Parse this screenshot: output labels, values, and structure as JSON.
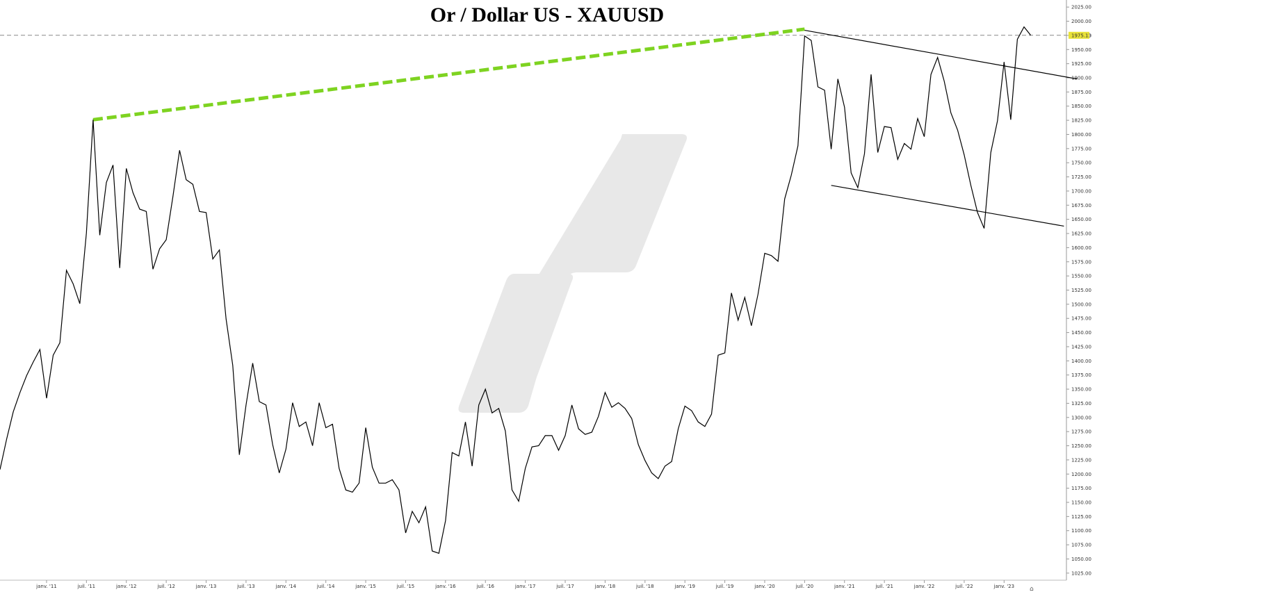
{
  "chart_data": {
    "type": "line",
    "title": "Or / Dollar US - XAUUSD",
    "xlabel": "",
    "ylabel": "",
    "ylim": [
      1012.5,
      2037.5
    ],
    "x_range": [
      "2010-06",
      "2023-08"
    ],
    "y_ticks": [
      "2025.00",
      "2000.00",
      "1975.00",
      "1950.00",
      "1925.00",
      "1900.00",
      "1875.00",
      "1850.00",
      "1825.00",
      "1800.00",
      "1775.00",
      "1750.00",
      "1725.00",
      "1700.00",
      "1675.00",
      "1650.00",
      "1625.00",
      "1600.00",
      "1575.00",
      "1550.00",
      "1525.00",
      "1500.00",
      "1475.00",
      "1450.00",
      "1425.00",
      "1400.00",
      "1375.00",
      "1350.00",
      "1325.00",
      "1300.00",
      "1275.00",
      "1250.00",
      "1225.00",
      "1200.00",
      "1175.00",
      "1150.00",
      "1125.00",
      "1100.00",
      "1075.00",
      "1050.00",
      "1025.00"
    ],
    "x_ticks": [
      {
        "label": "janv. '11",
        "date": "2011-01"
      },
      {
        "label": "juil. '11",
        "date": "2011-07"
      },
      {
        "label": "janv. '12",
        "date": "2012-01"
      },
      {
        "label": "juil. '12",
        "date": "2012-07"
      },
      {
        "label": "janv. '13",
        "date": "2013-01"
      },
      {
        "label": "juil. '13",
        "date": "2013-07"
      },
      {
        "label": "janv. '14",
        "date": "2014-01"
      },
      {
        "label": "juil. '14",
        "date": "2014-07"
      },
      {
        "label": "janv. '15",
        "date": "2015-01"
      },
      {
        "label": "juil. '15",
        "date": "2015-07"
      },
      {
        "label": "janv. '16",
        "date": "2016-01"
      },
      {
        "label": "juil. '16",
        "date": "2016-07"
      },
      {
        "label": "janv. '17",
        "date": "2017-01"
      },
      {
        "label": "juil. '17",
        "date": "2017-07"
      },
      {
        "label": "janv. '18",
        "date": "2018-01"
      },
      {
        "label": "juil. '18",
        "date": "2018-07"
      },
      {
        "label": "janv. '19",
        "date": "2019-01"
      },
      {
        "label": "juil. '19",
        "date": "2019-07"
      },
      {
        "label": "janv. '20",
        "date": "2020-01"
      },
      {
        "label": "juil. '20",
        "date": "2020-07"
      },
      {
        "label": "janv. '21",
        "date": "2021-01"
      },
      {
        "label": "juil. '21",
        "date": "2021-07"
      },
      {
        "label": "janv. '22",
        "date": "2022-01"
      },
      {
        "label": "juil. '22",
        "date": "2022-07"
      },
      {
        "label": "janv. '23",
        "date": "2023-01"
      }
    ],
    "series": [
      {
        "color": "#000000",
        "points": [
          [
            "2010-06",
            1208
          ],
          [
            "2010-07",
            1262
          ],
          [
            "2010-08",
            1310
          ],
          [
            "2010-09",
            1344
          ],
          [
            "2010-10",
            1374
          ],
          [
            "2010-11",
            1398
          ],
          [
            "2010-12",
            1420
          ],
          [
            "2011-01",
            1334
          ],
          [
            "2011-02",
            1410
          ],
          [
            "2011-03",
            1432
          ],
          [
            "2011-04",
            1560
          ],
          [
            "2011-05",
            1536
          ],
          [
            "2011-06",
            1501
          ],
          [
            "2011-07",
            1626
          ],
          [
            "2011-08",
            1826
          ],
          [
            "2011-09",
            1622
          ],
          [
            "2011-10",
            1715
          ],
          [
            "2011-11",
            1746
          ],
          [
            "2011-12",
            1564
          ],
          [
            "2012-01",
            1740
          ],
          [
            "2012-02",
            1697
          ],
          [
            "2012-03",
            1668
          ],
          [
            "2012-04",
            1664
          ],
          [
            "2012-05",
            1562
          ],
          [
            "2012-06",
            1598
          ],
          [
            "2012-07",
            1614
          ],
          [
            "2012-08",
            1690
          ],
          [
            "2012-09",
            1772
          ],
          [
            "2012-10",
            1720
          ],
          [
            "2012-11",
            1712
          ],
          [
            "2012-12",
            1664
          ],
          [
            "2013-01",
            1662
          ],
          [
            "2013-02",
            1580
          ],
          [
            "2013-03",
            1596
          ],
          [
            "2013-04",
            1474
          ],
          [
            "2013-05",
            1392
          ],
          [
            "2013-06",
            1234
          ],
          [
            "2013-07",
            1322
          ],
          [
            "2013-08",
            1396
          ],
          [
            "2013-09",
            1328
          ],
          [
            "2013-10",
            1322
          ],
          [
            "2013-11",
            1252
          ],
          [
            "2013-12",
            1202
          ],
          [
            "2014-01",
            1244
          ],
          [
            "2014-02",
            1326
          ],
          [
            "2014-03",
            1284
          ],
          [
            "2014-04",
            1292
          ],
          [
            "2014-05",
            1250
          ],
          [
            "2014-06",
            1326
          ],
          [
            "2014-07",
            1282
          ],
          [
            "2014-08",
            1288
          ],
          [
            "2014-09",
            1210
          ],
          [
            "2014-10",
            1172
          ],
          [
            "2014-11",
            1168
          ],
          [
            "2014-12",
            1184
          ],
          [
            "2015-01",
            1282
          ],
          [
            "2015-02",
            1212
          ],
          [
            "2015-03",
            1184
          ],
          [
            "2015-04",
            1184
          ],
          [
            "2015-05",
            1190
          ],
          [
            "2015-06",
            1172
          ],
          [
            "2015-07",
            1096
          ],
          [
            "2015-08",
            1134
          ],
          [
            "2015-09",
            1114
          ],
          [
            "2015-10",
            1142
          ],
          [
            "2015-11",
            1064
          ],
          [
            "2015-12",
            1060
          ],
          [
            "2016-01",
            1118
          ],
          [
            "2016-02",
            1238
          ],
          [
            "2016-03",
            1232
          ],
          [
            "2016-04",
            1292
          ],
          [
            "2016-05",
            1214
          ],
          [
            "2016-06",
            1322
          ],
          [
            "2016-07",
            1350
          ],
          [
            "2016-08",
            1308
          ],
          [
            "2016-09",
            1316
          ],
          [
            "2016-10",
            1276
          ],
          [
            "2016-11",
            1172
          ],
          [
            "2016-12",
            1152
          ],
          [
            "2017-01",
            1210
          ],
          [
            "2017-02",
            1248
          ],
          [
            "2017-03",
            1250
          ],
          [
            "2017-04",
            1268
          ],
          [
            "2017-05",
            1268
          ],
          [
            "2017-06",
            1242
          ],
          [
            "2017-07",
            1268
          ],
          [
            "2017-08",
            1322
          ],
          [
            "2017-09",
            1280
          ],
          [
            "2017-10",
            1270
          ],
          [
            "2017-11",
            1274
          ],
          [
            "2017-12",
            1302
          ],
          [
            "2018-01",
            1344
          ],
          [
            "2018-02",
            1318
          ],
          [
            "2018-03",
            1326
          ],
          [
            "2018-04",
            1316
          ],
          [
            "2018-05",
            1298
          ],
          [
            "2018-06",
            1252
          ],
          [
            "2018-07",
            1224
          ],
          [
            "2018-08",
            1202
          ],
          [
            "2018-09",
            1192
          ],
          [
            "2018-10",
            1214
          ],
          [
            "2018-11",
            1222
          ],
          [
            "2018-12",
            1280
          ],
          [
            "2019-01",
            1320
          ],
          [
            "2019-02",
            1312
          ],
          [
            "2019-03",
            1292
          ],
          [
            "2019-04",
            1284
          ],
          [
            "2019-05",
            1306
          ],
          [
            "2019-06",
            1410
          ],
          [
            "2019-07",
            1414
          ],
          [
            "2019-08",
            1520
          ],
          [
            "2019-09",
            1472
          ],
          [
            "2019-10",
            1512
          ],
          [
            "2019-11",
            1462
          ],
          [
            "2019-12",
            1518
          ],
          [
            "2020-01",
            1590
          ],
          [
            "2020-02",
            1586
          ],
          [
            "2020-03",
            1576
          ],
          [
            "2020-04",
            1686
          ],
          [
            "2020-05",
            1728
          ],
          [
            "2020-06",
            1780
          ],
          [
            "2020-07",
            1974
          ],
          [
            "2020-08",
            1966
          ],
          [
            "2020-09",
            1884
          ],
          [
            "2020-10",
            1878
          ],
          [
            "2020-11",
            1774
          ],
          [
            "2020-12",
            1898
          ],
          [
            "2021-01",
            1848
          ],
          [
            "2021-02",
            1732
          ],
          [
            "2021-03",
            1706
          ],
          [
            "2021-04",
            1766
          ],
          [
            "2021-05",
            1906
          ],
          [
            "2021-06",
            1768
          ],
          [
            "2021-07",
            1814
          ],
          [
            "2021-08",
            1812
          ],
          [
            "2021-09",
            1756
          ],
          [
            "2021-10",
            1784
          ],
          [
            "2021-11",
            1774
          ],
          [
            "2021-12",
            1828
          ],
          [
            "2022-01",
            1796
          ],
          [
            "2022-02",
            1906
          ],
          [
            "2022-03",
            1936
          ],
          [
            "2022-04",
            1894
          ],
          [
            "2022-05",
            1838
          ],
          [
            "2022-06",
            1808
          ],
          [
            "2022-07",
            1764
          ],
          [
            "2022-08",
            1710
          ],
          [
            "2022-09",
            1662
          ],
          [
            "2022-10",
            1634
          ],
          [
            "2022-11",
            1768
          ],
          [
            "2022-12",
            1824
          ],
          [
            "2023-01",
            1928
          ],
          [
            "2023-02",
            1826
          ],
          [
            "2023-03",
            1968
          ],
          [
            "2023-04",
            1990
          ],
          [
            "2023-05",
            1975.13
          ]
        ]
      }
    ],
    "annotations": {
      "current_price_label": "1975.13",
      "current_price": 1975.13,
      "current_price_bg": "#e8e23a",
      "green_trendline": {
        "color": "#7ed321",
        "from": [
          "2011-08",
          1826
        ],
        "to": [
          "2020-07",
          1986
        ]
      },
      "channel_upper": {
        "color": "#000000",
        "from": [
          "2020-07",
          1984
        ],
        "to": [
          "2023-12",
          1898
        ]
      },
      "channel_lower": {
        "color": "#000000",
        "from": [
          "2020-11",
          1710
        ],
        "to": [
          "2023-10",
          1638
        ]
      },
      "watermark_color": "#e8e8e8"
    }
  }
}
